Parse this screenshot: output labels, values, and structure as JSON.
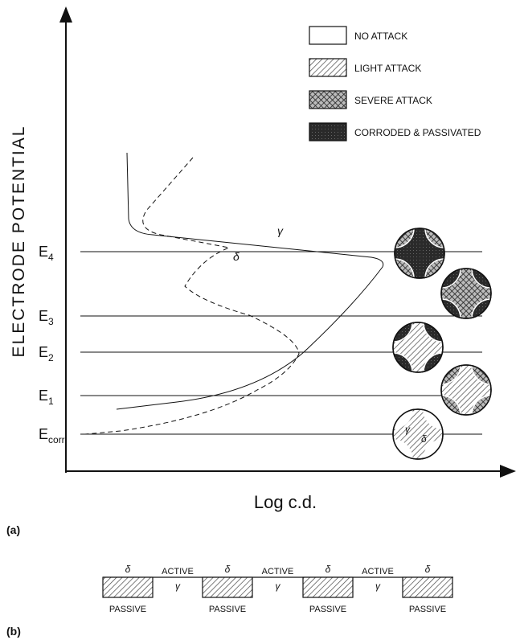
{
  "panel_a": {
    "label": "(a)",
    "y_axis_label": "ELECTRODE POTENTIAL",
    "x_axis_label": "Log c.d.",
    "potential_levels": [
      {
        "symbol": "E",
        "subscript": "4"
      },
      {
        "symbol": "E",
        "subscript": "3"
      },
      {
        "symbol": "E",
        "subscript": "2"
      },
      {
        "symbol": "E",
        "subscript": "1"
      },
      {
        "symbol": "E",
        "subscript": "corr"
      }
    ],
    "legend": [
      "NO ATTACK",
      "LIGHT ATTACK",
      "SEVERE ATTACK",
      "CORRODED & PASSIVATED"
    ],
    "curve_labels": [
      "γ",
      "δ"
    ],
    "circle_labels": [
      "γ",
      "δ"
    ]
  },
  "panel_b": {
    "label": "(b)",
    "passive_regions": [
      {
        "phase": "δ",
        "state": "PASSIVE"
      },
      {
        "phase": "δ",
        "state": "PASSIVE"
      },
      {
        "phase": "δ",
        "state": "PASSIVE"
      },
      {
        "phase": "δ",
        "state": "PASSIVE"
      }
    ],
    "active_regions": [
      {
        "state": "ACTIVE",
        "phase": "γ"
      },
      {
        "state": "ACTIVE",
        "phase": "γ"
      },
      {
        "state": "ACTIVE",
        "phase": "γ"
      }
    ]
  }
}
